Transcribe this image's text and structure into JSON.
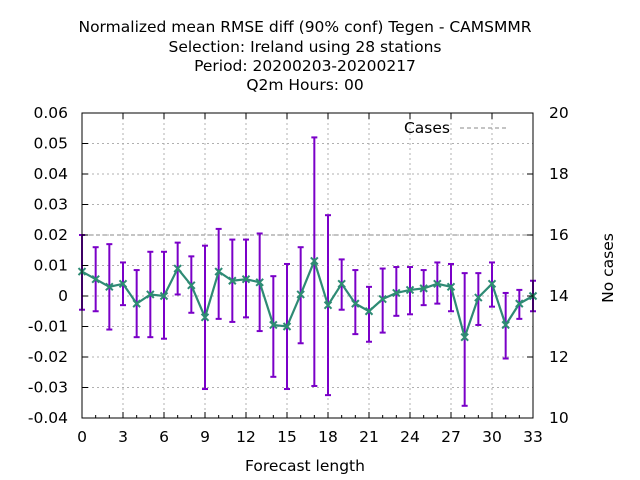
{
  "chart_data": {
    "type": "line",
    "title_lines": [
      "Normalized mean RMSE diff (90% conf) Tegen - CAMSMMR",
      "Selection: Ireland using    28 stations",
      "Period: 20200203-20200217",
      "Q2m   Hours:  00"
    ],
    "xlabel": "Forecast length",
    "ylabel": "",
    "y2label": "No cases",
    "xlim": [
      0,
      33
    ],
    "ylim": [
      -0.04,
      0.06
    ],
    "y2lim": [
      10,
      20
    ],
    "xticks": [
      0,
      3,
      6,
      9,
      12,
      15,
      18,
      21,
      24,
      27,
      30,
      33
    ],
    "yticks": [
      "-0.04",
      "-0.03",
      "-0.02",
      "-0.01",
      "0",
      "0.01",
      "0.02",
      "0.03",
      "0.04",
      "0.05",
      "0.06"
    ],
    "y2ticks": [
      "10",
      "12",
      "14",
      "16",
      "18",
      "20"
    ],
    "grid": true,
    "legend_position": "top-right",
    "series": [
      {
        "name": "Cases",
        "axis": "y2",
        "style": "dashed",
        "color": "#a0a0a0",
        "x": [
          0,
          33
        ],
        "values": [
          16,
          16
        ]
      },
      {
        "name": "",
        "axis": "y",
        "style": "line-points-errorbars",
        "color": "#2e8b74",
        "error_color": "#7a00c8",
        "x": [
          0,
          1,
          2,
          3,
          4,
          5,
          6,
          7,
          8,
          9,
          10,
          11,
          12,
          13,
          14,
          15,
          16,
          17,
          18,
          19,
          20,
          21,
          22,
          23,
          24,
          25,
          26,
          27,
          28,
          29,
          30,
          31,
          32,
          33
        ],
        "values": [
          0.008,
          0.0055,
          0.003,
          0.004,
          -0.0025,
          0.0005,
          0,
          0.009,
          0.0035,
          -0.007,
          0.008,
          0.005,
          0.0055,
          0.0045,
          -0.0095,
          -0.01,
          0.0005,
          0.0115,
          -0.003,
          0.004,
          -0.0025,
          -0.005,
          -0.001,
          0.001,
          0.002,
          0.0025,
          0.004,
          0.003,
          -0.0135,
          -0.0005,
          0.004,
          -0.0095,
          -0.0025,
          0
        ],
        "err_low": [
          -0.0045,
          -0.005,
          -0.011,
          -0.003,
          -0.0135,
          -0.0135,
          -0.014,
          0.0005,
          -0.0055,
          -0.0305,
          -0.0075,
          -0.0085,
          -0.007,
          -0.0115,
          -0.0265,
          -0.0305,
          -0.0155,
          -0.0295,
          -0.0325,
          -0.0045,
          -0.0125,
          -0.015,
          -0.012,
          -0.0065,
          -0.006,
          -0.003,
          -0.0025,
          -0.005,
          -0.036,
          -0.0095,
          -0.0035,
          -0.0205,
          -0.0075,
          -0.005
        ],
        "err_high": [
          0.02,
          0.016,
          0.017,
          0.011,
          0.0085,
          0.0145,
          0.0145,
          0.0175,
          0.013,
          0.0165,
          0.022,
          0.0185,
          0.0185,
          0.0205,
          0.0065,
          0.0105,
          0.016,
          0.052,
          0.0265,
          0.012,
          0.0085,
          0.003,
          0.009,
          0.0095,
          0.0095,
          0.0085,
          0.011,
          0.0105,
          0.0075,
          0.0075,
          0.011,
          0.001,
          0.002,
          0.005
        ]
      }
    ]
  }
}
